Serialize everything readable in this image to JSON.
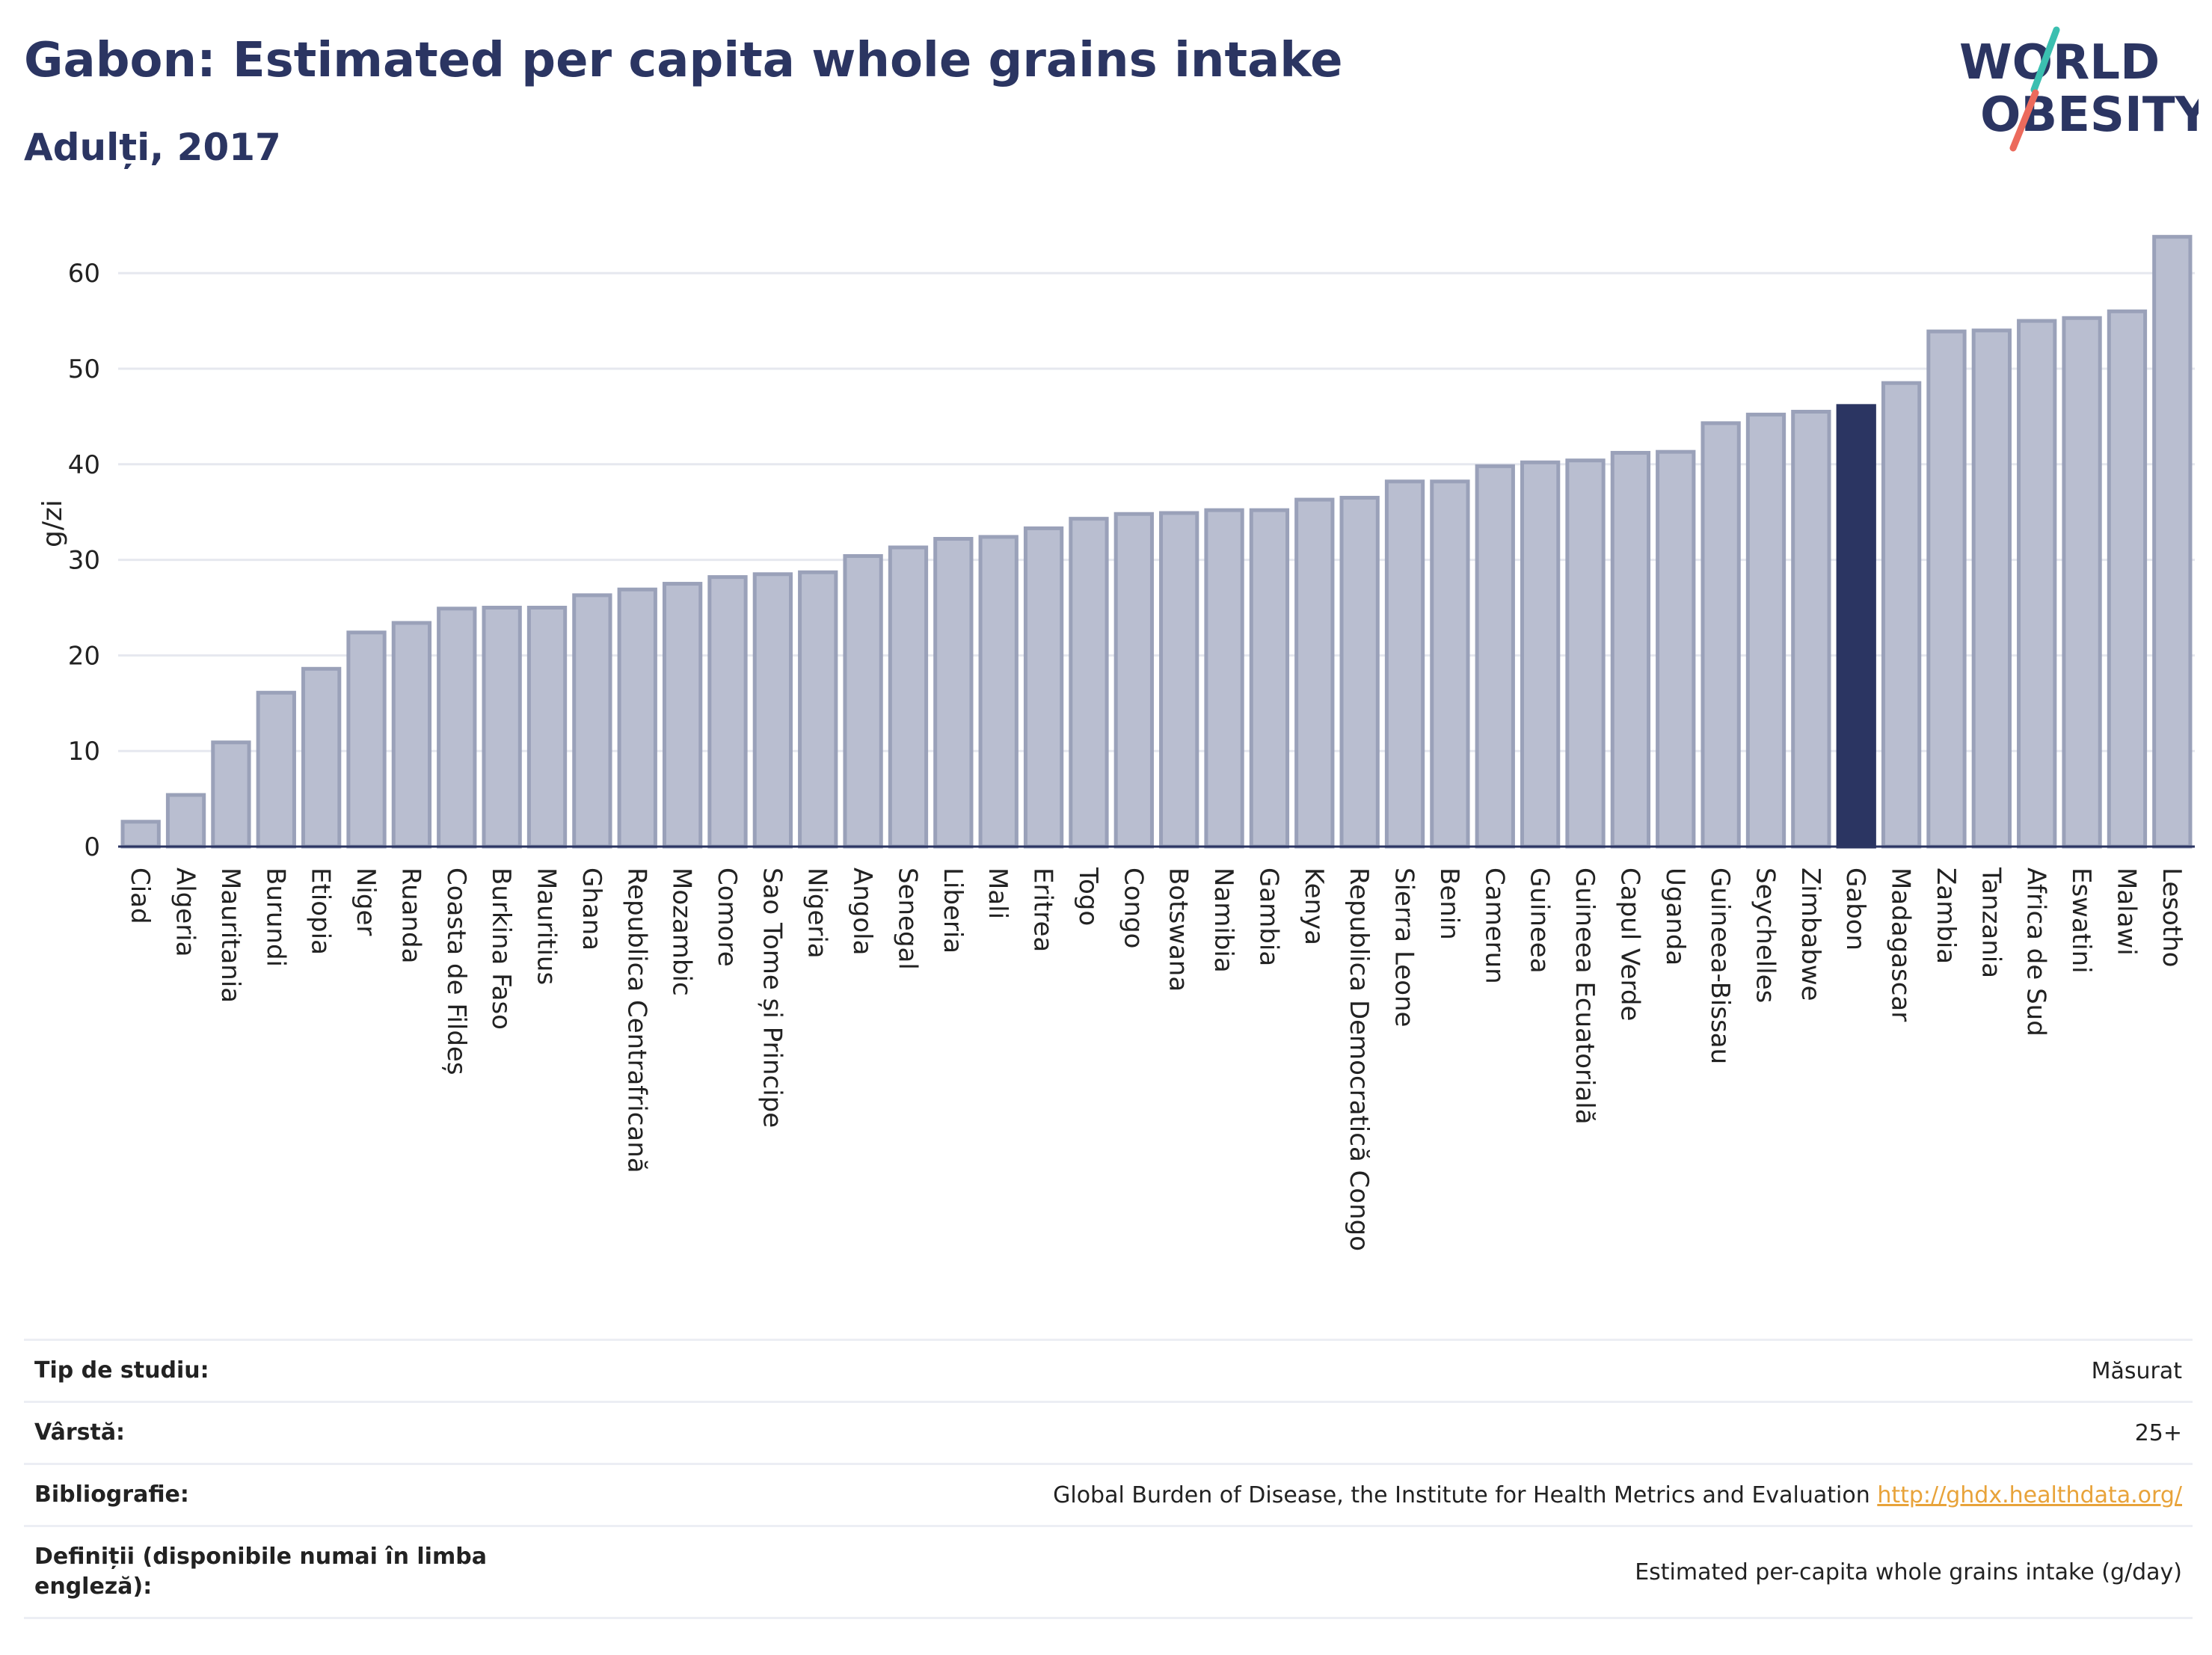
{
  "header": {
    "title": "Gabon: Estimated per capita whole grains intake",
    "subtitle": "Adulți, 2017"
  },
  "logo": {
    "line1": "WORLD",
    "line2": "OBESITY"
  },
  "colors": {
    "bar": "#b9bed0",
    "bar_stroke": "#9aa1b9",
    "highlight": "#2b3562",
    "grid": "#e6e8ef",
    "text": "#2b3562",
    "link": "#e8a33a"
  },
  "chart_data": {
    "type": "bar",
    "ylabel": "g/zi",
    "ylim": [
      0,
      65
    ],
    "yticks": [
      0,
      10,
      20,
      30,
      40,
      50,
      60
    ],
    "grid": true,
    "highlight": "Gabon",
    "categories": [
      "Ciad",
      "Algeria",
      "Mauritania",
      "Burundi",
      "Etiopia",
      "Niger",
      "Ruanda",
      "Coasta de Fildeș",
      "Burkina Faso",
      "Mauritius",
      "Ghana",
      "Republica Centrafricană",
      "Mozambic",
      "Comore",
      "Sao Tome și Principe",
      "Nigeria",
      "Angola",
      "Senegal",
      "Liberia",
      "Mali",
      "Eritrea",
      "Togo",
      "Congo",
      "Botswana",
      "Namibia",
      "Gambia",
      "Kenya",
      "Republica Democratică Congo",
      "Sierra Leone",
      "Benin",
      "Camerun",
      "Guineea",
      "Guineea Ecuatorială",
      "Capul Verde",
      "Uganda",
      "Guineea-Bissau",
      "Seychelles",
      "Zimbabwe",
      "Gabon",
      "Madagascar",
      "Zambia",
      "Tanzania",
      "Africa de Sud",
      "Eswatini",
      "Malawi",
      "Lesotho"
    ],
    "values": [
      2.6,
      5.4,
      10.9,
      16.1,
      18.6,
      22.4,
      23.4,
      24.9,
      25.0,
      25.0,
      26.3,
      26.9,
      27.5,
      28.2,
      28.5,
      28.7,
      30.4,
      31.3,
      32.2,
      32.4,
      33.3,
      34.3,
      34.8,
      34.9,
      35.2,
      35.2,
      36.3,
      36.5,
      38.2,
      38.2,
      39.8,
      40.2,
      40.4,
      41.2,
      41.3,
      44.3,
      45.2,
      45.5,
      46.1,
      48.5,
      53.9,
      54.0,
      55.0,
      55.3,
      56.0,
      63.8
    ]
  },
  "info": [
    {
      "label": "Tip de studiu:",
      "value": "Măsurat"
    },
    {
      "label": "Vârstă:",
      "value": "25+"
    },
    {
      "label": "Bibliografie:",
      "value": "Global Burden of Disease, the Institute for Health Metrics and Evaluation",
      "link": "http://ghdx.healthdata.org/"
    },
    {
      "label": "Definiții (disponibile numai în limba engleză):",
      "value": "Estimated per-capita whole grains intake (g/day)"
    }
  ]
}
